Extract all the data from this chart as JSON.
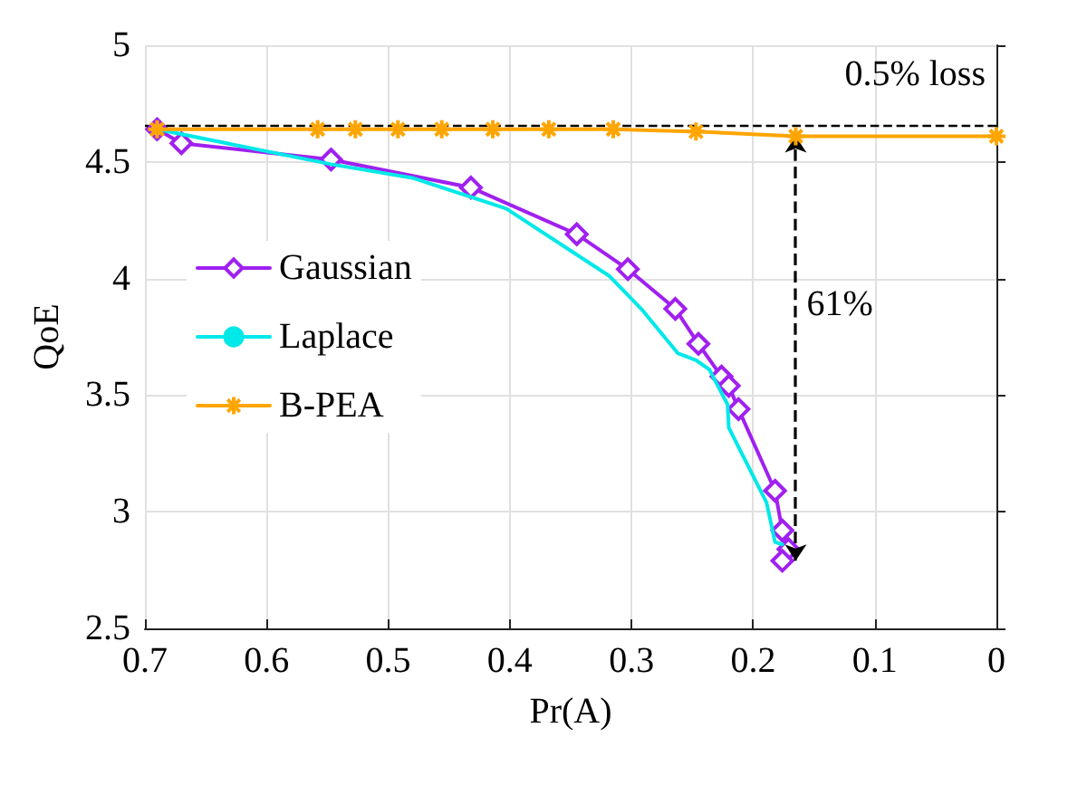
{
  "chart_data": {
    "type": "line",
    "xlabel": "Pr(A)",
    "ylabel": "QoE",
    "xlim": [
      0.7,
      0
    ],
    "ylim": [
      2.5,
      5
    ],
    "xticks": [
      0.7,
      0.6,
      0.5,
      0.4,
      0.3,
      0.2,
      0.1,
      0
    ],
    "yticks": [
      2.5,
      3,
      3.5,
      4,
      4.5,
      5
    ],
    "grid": true,
    "legend": "left",
    "line_style": "solid",
    "series": [
      {
        "name": "Gaussian",
        "color": "#a020f0",
        "marker": "diamond",
        "x": [
          0.69,
          0.67,
          0.547,
          0.432,
          0.345,
          0.303,
          0.264,
          0.245,
          0.226,
          0.22,
          0.212,
          0.182,
          0.176,
          0.171,
          0.176
        ],
        "values": [
          4.64,
          4.58,
          4.51,
          4.39,
          4.19,
          4.04,
          3.87,
          3.72,
          3.58,
          3.54,
          3.44,
          3.09,
          2.92,
          2.84,
          2.79
        ]
      },
      {
        "name": "Laplace",
        "color": "#00e8e8",
        "marker": "none",
        "x": [
          0.69,
          0.547,
          0.479,
          0.403,
          0.318,
          0.292,
          0.262,
          0.247,
          0.236,
          0.221,
          0.22,
          0.189,
          0.182,
          0.176
        ],
        "values": [
          4.64,
          4.49,
          4.43,
          4.3,
          4.01,
          3.87,
          3.68,
          3.65,
          3.61,
          3.46,
          3.36,
          3.04,
          2.87,
          2.86
        ]
      },
      {
        "name": "B-PEA",
        "color": "#ffa500",
        "marker": "cross",
        "x": [
          0.69,
          0.558,
          0.527,
          0.492,
          0.456,
          0.414,
          0.368,
          0.315,
          0.247,
          0.165,
          0
        ],
        "values": [
          4.64,
          4.64,
          4.64,
          4.64,
          4.64,
          4.64,
          4.64,
          4.64,
          4.63,
          4.61,
          4.61
        ]
      }
    ],
    "ref_lines": [
      {
        "axis": "y",
        "value": 4.66,
        "color": "#000000",
        "line_style": "dashed"
      }
    ],
    "annotations": [
      "0.5% loss",
      "61%"
    ]
  }
}
